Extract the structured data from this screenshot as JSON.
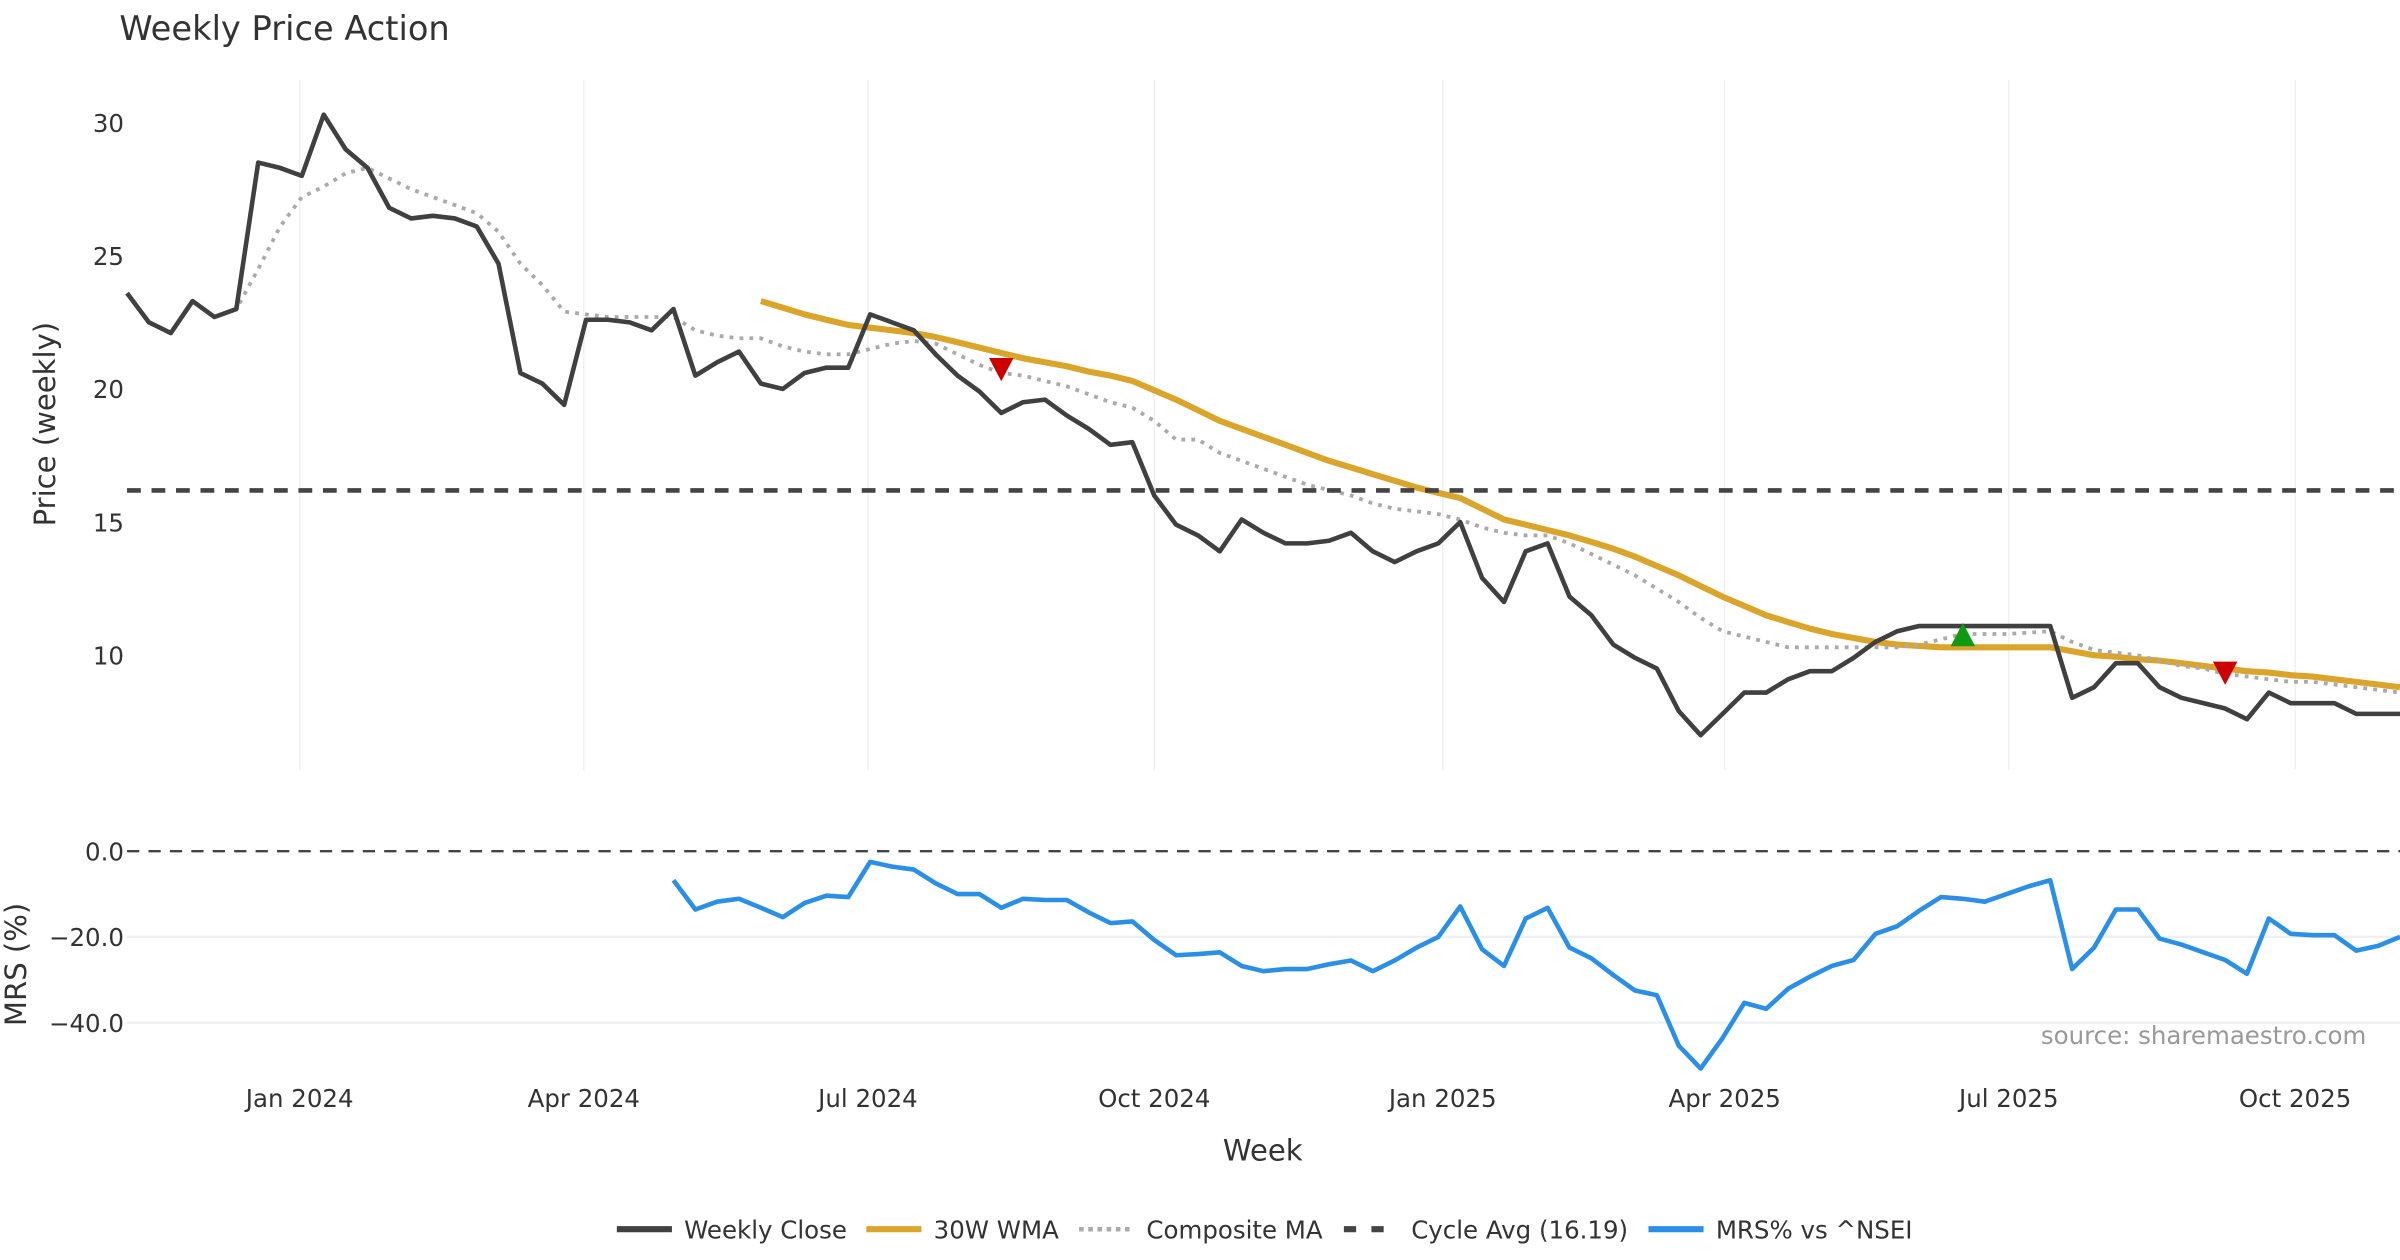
{
  "chart_data": [
    {
      "type": "line",
      "title": "Weekly Price Action",
      "ylabel": "Price (weekly)",
      "xlabel": "Week",
      "ylim": [
        5.3,
        31.6
      ],
      "yticks": [
        10,
        15,
        20,
        25,
        30
      ],
      "x_unit": "week index",
      "xlim": [
        0,
        104
      ],
      "xticks": [
        {
          "label": "Jan 2024",
          "x": 7.9
        },
        {
          "label": "Apr 2024",
          "x": 20.9
        },
        {
          "label": "Jul 2024",
          "x": 33.9
        },
        {
          "label": "Oct 2024",
          "x": 47.0
        },
        {
          "label": "Jan 2025",
          "x": 60.2
        },
        {
          "label": "Apr 2025",
          "x": 73.1
        },
        {
          "label": "Jul 2025",
          "x": 86.1
        },
        {
          "label": "Oct 2025",
          "x": 99.2
        }
      ],
      "grid": "vertical",
      "series": [
        {
          "name": "Weekly Close",
          "color": "#404040",
          "style": "solid",
          "start": 0,
          "values": [
            23.6,
            22.5,
            22.1,
            23.3,
            22.7,
            23.0,
            28.5,
            28.3,
            28.0,
            30.3,
            29.0,
            28.3,
            26.8,
            26.4,
            26.5,
            26.4,
            26.1,
            24.7,
            20.6,
            20.2,
            19.4,
            22.6,
            22.6,
            22.5,
            22.2,
            23.0,
            20.5,
            21.0,
            21.4,
            20.2,
            20.0,
            20.6,
            20.8,
            20.8,
            22.8,
            22.5,
            22.2,
            21.3,
            20.5,
            19.9,
            19.1,
            19.5,
            19.6,
            19.0,
            18.5,
            17.9,
            18.0,
            16.0,
            14.9,
            14.5,
            13.9,
            15.1,
            14.6,
            14.2,
            14.2,
            14.3,
            14.6,
            13.9,
            13.5,
            13.9,
            14.2,
            15.0,
            12.9,
            12.0,
            13.9,
            14.2,
            12.2,
            11.5,
            10.4,
            9.9,
            9.5,
            7.9,
            7.0,
            7.8,
            8.6,
            8.6,
            9.1,
            9.4,
            9.4,
            9.9,
            10.5,
            10.9,
            11.1,
            11.1,
            11.1,
            11.1,
            11.1,
            11.1,
            11.1,
            8.4,
            8.8,
            9.7,
            9.7,
            8.8,
            8.4,
            8.2,
            8.0,
            7.6,
            8.6,
            8.2,
            8.2,
            8.2,
            7.8,
            7.8,
            7.8
          ]
        },
        {
          "name": "30W WMA",
          "color": "#DAA52A",
          "style": "solid",
          "start": 29,
          "values": [
            23.3,
            23.05,
            22.8,
            22.6,
            22.4,
            22.3,
            22.2,
            22.1,
            21.95,
            21.75,
            21.55,
            21.35,
            21.15,
            21.0,
            20.85,
            20.65,
            20.5,
            20.3,
            19.95,
            19.6,
            19.2,
            18.8,
            18.5,
            18.2,
            17.9,
            17.6,
            17.3,
            17.05,
            16.8,
            16.55,
            16.3,
            16.1,
            15.9,
            15.5,
            15.1,
            14.9,
            14.7,
            14.5,
            14.25,
            14.0,
            13.7,
            13.35,
            13.0,
            12.6,
            12.2,
            11.85,
            11.5,
            11.25,
            11.0,
            10.8,
            10.65,
            10.5,
            10.4,
            10.35,
            10.3,
            10.3,
            10.3,
            10.3,
            10.3,
            10.3,
            10.15,
            10.0,
            9.95,
            9.85,
            9.8,
            9.7,
            9.6,
            9.5,
            9.4,
            9.35,
            9.25,
            9.2,
            9.1,
            9.0,
            8.9,
            8.8
          ]
        },
        {
          "name": "Composite MA",
          "color": "#AAAAAA",
          "style": "dotted",
          "start": 4,
          "values": [
            22.7,
            23.0,
            24.5,
            26.1,
            27.2,
            27.6,
            28.1,
            28.3,
            27.9,
            27.5,
            27.2,
            26.9,
            26.6,
            25.9,
            24.7,
            23.9,
            22.9,
            22.8,
            22.7,
            22.7,
            22.7,
            22.7,
            22.2,
            22.0,
            21.9,
            21.9,
            21.6,
            21.4,
            21.3,
            21.3,
            21.5,
            21.7,
            21.8,
            21.7,
            21.3,
            20.9,
            20.6,
            20.5,
            20.3,
            20.1,
            19.8,
            19.5,
            19.3,
            18.8,
            18.1,
            18.1,
            17.6,
            17.3,
            17.0,
            16.7,
            16.4,
            16.2,
            16.0,
            15.7,
            15.5,
            15.4,
            15.3,
            15.1,
            14.8,
            14.6,
            14.5,
            14.5,
            14.2,
            13.8,
            13.4,
            13.0,
            12.5,
            12.0,
            11.4,
            10.9,
            10.7,
            10.5,
            10.3,
            10.3,
            10.3,
            10.3,
            10.3,
            10.3,
            10.4,
            10.6,
            10.8,
            10.8,
            10.8,
            10.85,
            10.9,
            10.5,
            10.2,
            10.1,
            10.0,
            9.8,
            9.6,
            9.5,
            9.3,
            9.2,
            9.1,
            9.0,
            9.0,
            8.9,
            8.8,
            8.7,
            8.6
          ]
        },
        {
          "name": "Cycle Avg (16.19)",
          "color": "#444444",
          "style": "dashed",
          "constant": 16.19
        }
      ],
      "markers": [
        {
          "type": "sell",
          "shape": "triangle-down",
          "color": "#CC0000",
          "x": 40,
          "y": 20.7
        },
        {
          "type": "buy",
          "shape": "triangle-up",
          "color": "#119911",
          "x": 84,
          "y": 10.8
        },
        {
          "type": "sell",
          "shape": "triangle-down",
          "color": "#CC0000",
          "x": 96,
          "y": 9.3
        }
      ]
    },
    {
      "type": "line",
      "ylabel": "MRS (%)",
      "ylim": [
        -55,
        4
      ],
      "yticks": [
        {
          "v": 0,
          "label": "0.0"
        },
        {
          "v": -20,
          "label": "−20.0"
        },
        {
          "v": -40,
          "label": "−40.0"
        }
      ],
      "grid": "horizontal",
      "reference_line": {
        "value": 0,
        "style": "dashed",
        "color": "#444444"
      },
      "series": [
        {
          "name": "MRS% vs ^NSEI",
          "color": "#2B8FE8",
          "style": "solid",
          "start": 25,
          "values": [
            -6.8,
            -13.6,
            -11.8,
            -11.1,
            -13.2,
            -15.4,
            -12.1,
            -10.4,
            -10.7,
            -2.5,
            -3.6,
            -4.3,
            -7.5,
            -10.0,
            -10.0,
            -13.2,
            -11.1,
            -11.4,
            -11.4,
            -14.3,
            -16.8,
            -16.4,
            -20.7,
            -24.3,
            -24.0,
            -23.6,
            -26.8,
            -28.0,
            -27.5,
            -27.5,
            -26.4,
            -25.5,
            -28.0,
            -25.5,
            -22.5,
            -20.0,
            -12.9,
            -22.9,
            -26.8,
            -15.7,
            -13.2,
            -22.5,
            -25.0,
            -28.9,
            -32.5,
            -33.6,
            -45.4,
            -50.7,
            -43.6,
            -35.4,
            -36.8,
            -32.1,
            -29.3,
            -26.8,
            -25.4,
            -19.3,
            -17.5,
            -13.9,
            -10.7,
            -11.1,
            -11.8,
            -10.0,
            -8.2,
            -6.8,
            -27.5,
            -22.5,
            -13.6,
            -13.6,
            -20.4,
            -21.8,
            -23.6,
            -25.4,
            -28.6,
            -15.7,
            -19.3,
            -19.6,
            -19.6,
            -23.2,
            -22.1,
            -20.0
          ]
        }
      ],
      "annotation": "source: sharemaestro.com"
    }
  ],
  "legend": {
    "placement": "bottom-center",
    "items": [
      {
        "label": "Weekly Close",
        "color": "#404040",
        "style": "solid"
      },
      {
        "label": "30W WMA",
        "color": "#DAA52A",
        "style": "solid"
      },
      {
        "label": "Composite MA",
        "color": "#AAAAAA",
        "style": "dotted"
      },
      {
        "label": "Cycle Avg (16.19)",
        "color": "#444444",
        "style": "dashed"
      },
      {
        "label": "MRS% vs ^NSEI",
        "color": "#2B8FE8",
        "style": "solid"
      }
    ]
  }
}
